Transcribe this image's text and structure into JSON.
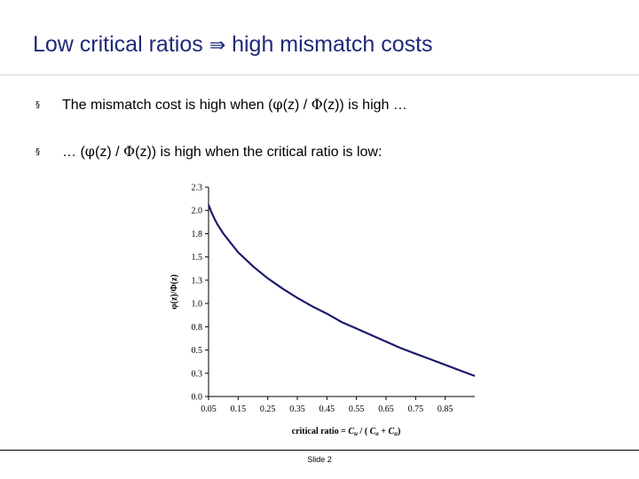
{
  "slide": {
    "title_left": "Low critical ratios",
    "title_symbol": "⇛",
    "title_right": "high mismatch costs",
    "bullets": [
      {
        "mark": "§",
        "parts": [
          "The mismatch cost is high when (",
          "φ",
          "(z) / ",
          "Φ",
          "(z))  is high …"
        ]
      },
      {
        "mark": "§",
        "parts": [
          "… (",
          "φ",
          "(z) / ",
          "Φ",
          "(z))  is high when the critical ratio is low:"
        ]
      }
    ],
    "footer": "Slide 2"
  },
  "chart_data": {
    "type": "line",
    "ylabel": "φ(z)/Φ(z)",
    "xlabel_parts": [
      "critical ratio = ",
      "C",
      "u",
      " / ( ",
      "C",
      "o",
      " + ",
      "C",
      "u",
      ")"
    ],
    "x_ticks": [
      "0.05",
      "0.15",
      "0.25",
      "0.35",
      "0.45",
      "0.55",
      "0.65",
      "0.75",
      "0.85"
    ],
    "y_ticks": [
      "0.0",
      "0.3",
      "0.5",
      "0.8",
      "1.0",
      "1.3",
      "1.5",
      "1.8",
      "2.0",
      "2.3"
    ],
    "xlim": [
      0.05,
      0.95
    ],
    "ylim": [
      0,
      2.25
    ],
    "grid": false,
    "series": [
      {
        "color": "#1a1a6e",
        "x": [
          0.05,
          0.06,
          0.07,
          0.08,
          0.1,
          0.12,
          0.15,
          0.2,
          0.25,
          0.3,
          0.35,
          0.4,
          0.45,
          0.5,
          0.55,
          0.6,
          0.65,
          0.7,
          0.75,
          0.8,
          0.85,
          0.9,
          0.95
        ],
        "y": [
          2.06,
          1.98,
          1.91,
          1.85,
          1.75,
          1.67,
          1.55,
          1.4,
          1.27,
          1.16,
          1.06,
          0.97,
          0.89,
          0.8,
          0.73,
          0.66,
          0.59,
          0.52,
          0.46,
          0.4,
          0.34,
          0.28,
          0.22
        ]
      }
    ]
  }
}
